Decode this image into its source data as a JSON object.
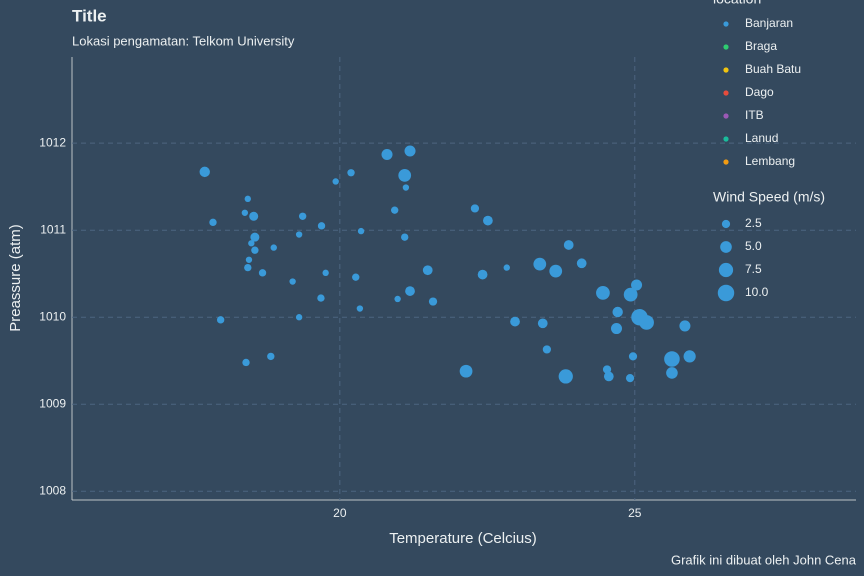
{
  "chart_data": {
    "type": "scatter",
    "title": "Title",
    "subtitle": "Lokasi pengamatan: Telkom University",
    "caption": "Grafik ini dibuat oleh John Cena",
    "x_label": "Temperature (Celcius)",
    "y_label": "Preassure (atm)",
    "series_name": "Banjaran",
    "color": "#3a9ad9",
    "x": [
      17.71,
      17.85,
      17.98,
      18.41,
      18.44,
      18.39,
      18.54,
      18.56,
      18.5,
      18.56,
      18.46,
      18.44,
      18.69,
      18.88,
      18.83,
      19.2,
      19.31,
      19.37,
      19.31,
      19.69,
      19.76,
      19.68,
      19.93,
      20.19,
      20.27,
      20.36,
      20.34,
      20.8,
      20.93,
      20.98,
      21.19,
      21.1,
      21.12,
      21.1,
      21.19,
      21.49,
      21.58,
      22.14,
      22.29,
      22.42,
      22.51,
      22.83,
      22.97,
      23.39,
      23.44,
      23.51,
      23.66,
      23.83,
      23.88,
      24.1,
      24.46,
      24.53,
      24.56,
      24.69,
      24.71,
      24.92,
      24.97,
      24.93,
      25.03,
      25.08,
      25.2,
      25.85,
      25.63,
      25.63,
      25.93
    ],
    "values": [
      1011.67,
      1011.09,
      1009.97,
      1009.48,
      1011.36,
      1011.2,
      1011.16,
      1010.92,
      1010.85,
      1010.77,
      1010.66,
      1010.57,
      1010.51,
      1010.8,
      1009.55,
      1010.41,
      1010.0,
      1011.16,
      1010.95,
      1011.05,
      1010.51,
      1010.22,
      1011.56,
      1011.66,
      1010.46,
      1010.99,
      1010.1,
      1011.87,
      1011.23,
      1010.21,
      1011.91,
      1011.63,
      1011.49,
      1010.92,
      1010.3,
      1010.54,
      1010.18,
      1009.38,
      1011.25,
      1010.49,
      1011.11,
      1010.57,
      1009.95,
      1010.61,
      1009.93,
      1009.63,
      1010.53,
      1009.32,
      1010.83,
      1010.62,
      1010.28,
      1009.4,
      1009.32,
      1009.87,
      1010.06,
      1009.3,
      1009.55,
      1010.26,
      1010.37,
      1010.0,
      1009.94,
      1009.9,
      1009.52,
      1009.36,
      1009.55
    ],
    "sizes": [
      4,
      2,
      2,
      2,
      1.5,
      1.5,
      3,
      3,
      1.5,
      2,
      1.5,
      2,
      2,
      1.5,
      2,
      1.5,
      1.5,
      2,
      1.5,
      2,
      1.5,
      2,
      1.5,
      2,
      2,
      1.5,
      1.5,
      4.5,
      2,
      1.5,
      4.5,
      6,
      1.5,
      2,
      3.5,
      3.5,
      2.5,
      6,
      2.5,
      3.5,
      3.5,
      1.5,
      3.5,
      6,
      3.5,
      2.5,
      6,
      7.5,
      3.5,
      3.5,
      7,
      2.5,
      3.5,
      4.5,
      4,
      2.5,
      2.5,
      7,
      4.5,
      10,
      8,
      4.5,
      9,
      5,
      5.5
    ],
    "xlim": [
      15.46,
      28.75
    ],
    "ylim": [
      1007.9,
      1012.99
    ],
    "xticks": [
      20,
      25
    ],
    "yticks": [
      1008,
      1009,
      1010,
      1011,
      1012
    ],
    "grid": true,
    "location_legend": {
      "title": "location",
      "items": [
        {
          "name": "Banjaran",
          "color": "#3a9ad9"
        },
        {
          "name": "Braga",
          "color": "#2ecc71"
        },
        {
          "name": "Buah Batu",
          "color": "#f1c40f"
        },
        {
          "name": "Dago",
          "color": "#e74c3c"
        },
        {
          "name": "ITB",
          "color": "#9b59b6"
        },
        {
          "name": "Lanud",
          "color": "#1abc9c"
        },
        {
          "name": "Lembang",
          "color": "#f39c12"
        }
      ]
    },
    "size_legend": {
      "title": "Wind Speed (m/s)",
      "values": [
        2.5,
        {
          "value": 5,
          "label": "5.0"
        },
        7.5,
        {
          "value": 10,
          "label": "10.0"
        }
      ]
    }
  }
}
